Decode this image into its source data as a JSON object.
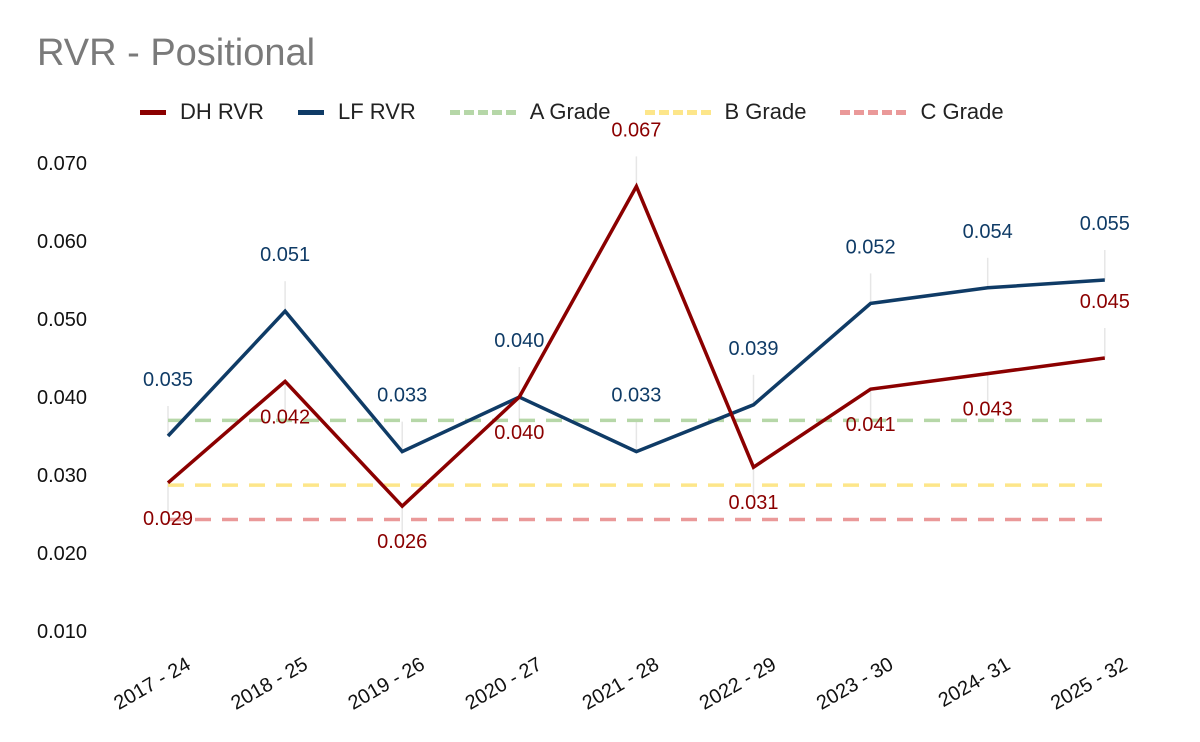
{
  "chart_data": {
    "type": "line",
    "title": "RVR - Positional",
    "xlabel": "",
    "ylabel": "",
    "categories": [
      "2017 - 24",
      "2018 - 25",
      "2019 - 26",
      "2020 - 27",
      "2021 - 28",
      "2022 - 29",
      "2023 - 30",
      "2024- 31",
      "2025 - 32"
    ],
    "ylim": [
      0.01,
      0.07
    ],
    "yticks": [
      "0.010",
      "0.020",
      "0.030",
      "0.040",
      "0.050",
      "0.060",
      "0.070"
    ],
    "series": [
      {
        "name": "DH RVR",
        "color": "#8b0000",
        "style": "solid",
        "values": [
          0.029,
          0.042,
          0.026,
          0.04,
          0.067,
          0.031,
          0.041,
          0.043,
          0.045
        ],
        "labels": [
          "0.029",
          "0.042",
          "0.026",
          "0.040",
          "0.067",
          "0.031",
          "0.041",
          "0.043",
          "0.045"
        ],
        "label_pos": [
          "below",
          "below",
          "below",
          "below",
          "above",
          "below",
          "below",
          "below",
          "above"
        ]
      },
      {
        "name": "LF RVR",
        "color": "#0f3b66",
        "style": "solid",
        "values": [
          0.035,
          0.051,
          0.033,
          0.04,
          0.033,
          0.039,
          0.052,
          0.054,
          0.055
        ],
        "labels": [
          "0.035",
          "0.051",
          "0.033",
          "0.040",
          "0.033",
          "0.039",
          "0.052",
          "0.054",
          "0.055"
        ],
        "label_pos": [
          "above",
          "above",
          "above",
          "above",
          "above",
          "above",
          "above",
          "above",
          "above"
        ]
      },
      {
        "name": "A Grade",
        "color": "#b6d7a8",
        "style": "dashed",
        "value": 0.037
      },
      {
        "name": "B Grade",
        "color": "#fde68a",
        "style": "dashed",
        "value": 0.0287
      },
      {
        "name": "C Grade",
        "color": "#ea9999",
        "style": "dashed",
        "value": 0.0243
      }
    ],
    "legend": "top",
    "grid": false
  }
}
